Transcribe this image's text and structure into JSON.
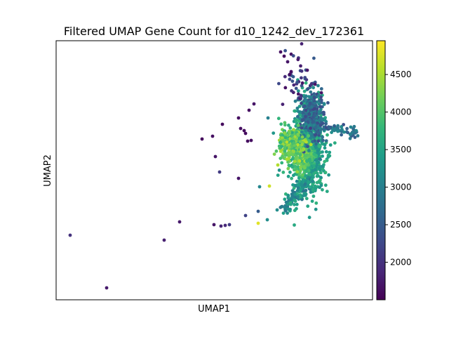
{
  "chart_data": {
    "type": "scatter",
    "title": "Filtered UMAP Gene Count for d10_1242_dev_172361",
    "xlabel": "UMAP1",
    "ylabel": "UMAP2",
    "x_ticks_shown": false,
    "y_ticks_shown": false,
    "colorbar": {
      "colormap": "viridis",
      "range": [
        1500,
        4950
      ],
      "ticks": [
        2000,
        2500,
        3000,
        3500,
        4000,
        4500
      ],
      "tick_labels": [
        "2000",
        "2500",
        "3000",
        "3500",
        "4000",
        "4500"
      ]
    },
    "points_description": "Dense cluster of cells on the right with high gene counts (yellow-green core), sparse low-count outliers scattered toward the lower left and top."
  }
}
